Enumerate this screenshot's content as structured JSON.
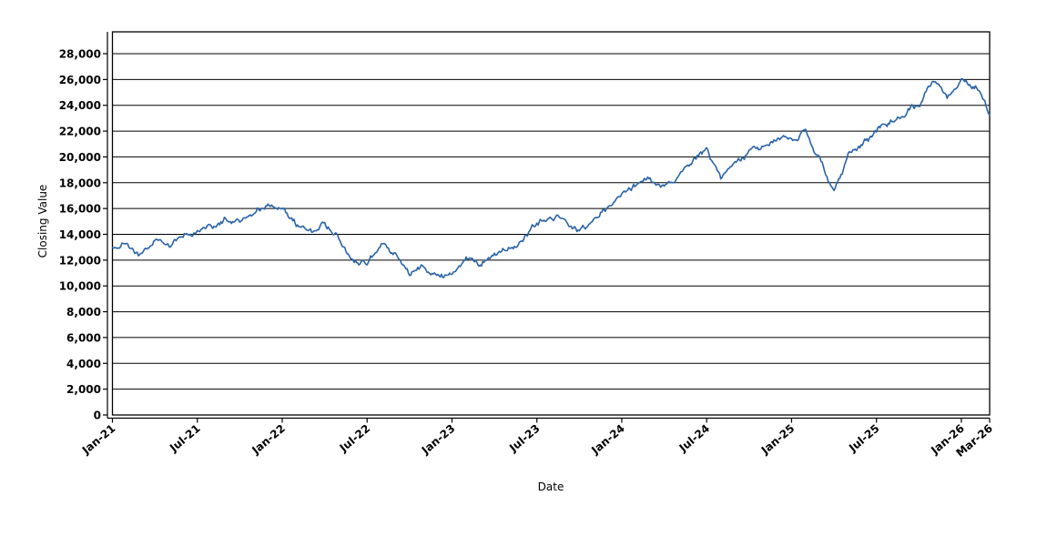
{
  "chart_data": {
    "type": "line",
    "title": "",
    "xlabel": "Date",
    "ylabel": "Closing Value",
    "grid": "horizontal-only",
    "legend": "none",
    "ylim": [
      0,
      29700
    ],
    "x_range": [
      "Jan-21",
      "Mar-26"
    ],
    "y_ticks": [
      {
        "v": 0,
        "label": "0"
      },
      {
        "v": 2000,
        "label": "2,000"
      },
      {
        "v": 4000,
        "label": "4,000"
      },
      {
        "v": 6000,
        "label": "6,000"
      },
      {
        "v": 8000,
        "label": "8,000"
      },
      {
        "v": 10000,
        "label": "10,000"
      },
      {
        "v": 12000,
        "label": "12,000"
      },
      {
        "v": 14000,
        "label": "14,000"
      },
      {
        "v": 16000,
        "label": "16,000"
      },
      {
        "v": 18000,
        "label": "18,000"
      },
      {
        "v": 20000,
        "label": "20,000"
      },
      {
        "v": 22000,
        "label": "22,000"
      },
      {
        "v": 24000,
        "label": "24,000"
      },
      {
        "v": 26000,
        "label": "26,000"
      },
      {
        "v": 28000,
        "label": "28,000"
      }
    ],
    "x_ticks": [
      {
        "label": "Jan-21",
        "month_index": 0
      },
      {
        "label": "Jul-21",
        "month_index": 6
      },
      {
        "label": "Jan-22",
        "month_index": 12
      },
      {
        "label": "Jul-22",
        "month_index": 18
      },
      {
        "label": "Jan-23",
        "month_index": 24
      },
      {
        "label": "Jul-23",
        "month_index": 30
      },
      {
        "label": "Jan-24",
        "month_index": 36
      },
      {
        "label": "Jul-24",
        "month_index": 42
      },
      {
        "label": "Jan-25",
        "month_index": 48
      },
      {
        "label": "Jul-25",
        "month_index": 54
      },
      {
        "label": "Jan-26",
        "month_index": 60
      },
      {
        "label": "Mar-26",
        "month_index": 62
      }
    ],
    "series": [
      {
        "name": "Closing Value",
        "style": "jagged-daily",
        "months": [
          "Jan-21",
          "Feb-21",
          "Mar-21",
          "Apr-21",
          "May-21",
          "Jun-21",
          "Jul-21",
          "Aug-21",
          "Sep-21",
          "Oct-21",
          "Nov-21",
          "Dec-21",
          "Jan-22",
          "Feb-22",
          "Mar-22",
          "Apr-22",
          "May-22",
          "Jun-22",
          "Jul-22",
          "Aug-22",
          "Sep-22",
          "Oct-22",
          "Nov-22",
          "Dec-22",
          "Jan-23",
          "Feb-23",
          "Mar-23",
          "Apr-23",
          "May-23",
          "Jun-23",
          "Jul-23",
          "Aug-23",
          "Sep-23",
          "Oct-23",
          "Nov-23",
          "Dec-23",
          "Jan-24",
          "Feb-24",
          "Mar-24",
          "Apr-24",
          "May-24",
          "Jun-24",
          "Jul-24",
          "Aug-24",
          "Sep-24",
          "Oct-24",
          "Nov-24",
          "Dec-24",
          "Jan-25",
          "Feb-25",
          "Mar-25",
          "Apr-25",
          "May-25",
          "Jun-25",
          "Jul-25",
          "Aug-25",
          "Sep-25",
          "Oct-25",
          "Nov-25",
          "Dec-25",
          "Jan-26",
          "Feb-26",
          "Mar-26"
        ],
        "monthly_values": [
          13000,
          13200,
          12500,
          13700,
          13200,
          13900,
          14300,
          14600,
          15100,
          14900,
          15800,
          16300,
          16300,
          14700,
          14100,
          15000,
          13800,
          11900,
          11700,
          13200,
          12300,
          10900,
          11500,
          10700,
          10900,
          12300,
          11900,
          12600,
          12900,
          13400,
          14800,
          15500,
          15200,
          14400,
          14800,
          16000,
          16900,
          17900,
          18300,
          17500,
          18400,
          19800,
          20400,
          18200,
          19300,
          20300,
          20800,
          21400,
          21500,
          22000,
          19800,
          17300,
          20200,
          21100,
          21900,
          22700,
          23400,
          24000,
          25900,
          24800,
          25800,
          25500,
          23300
        ]
      }
    ],
    "colors": {
      "line": "#2a63a8",
      "grid": "#000000",
      "border": "#000000",
      "background": "#ffffff",
      "text": "#000000"
    }
  }
}
